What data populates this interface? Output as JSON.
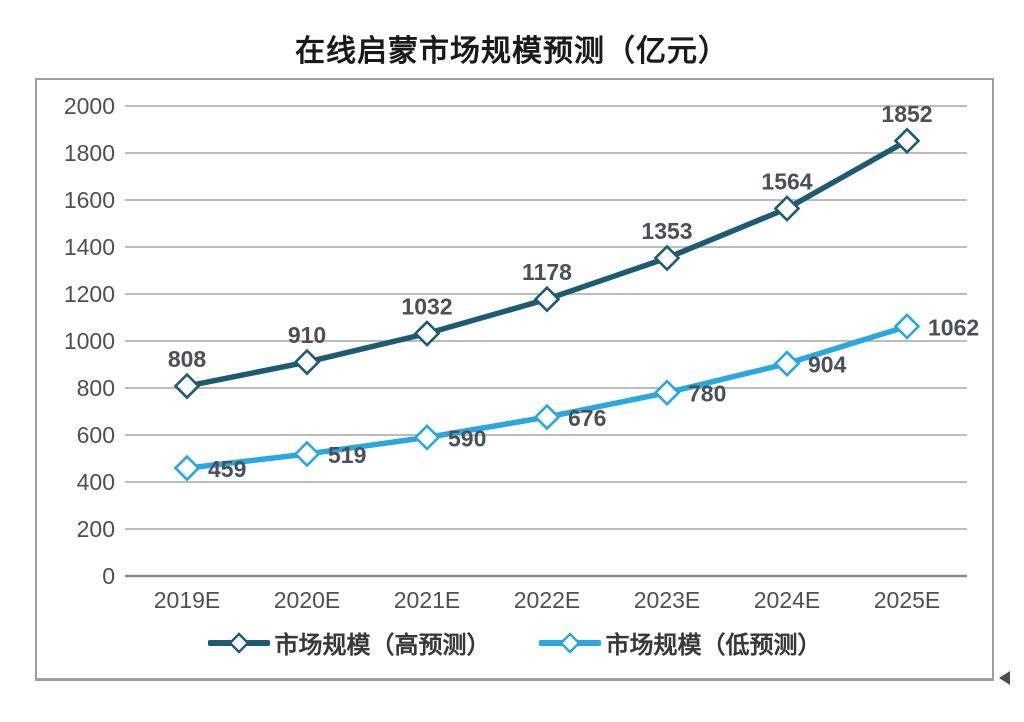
{
  "chart_data": {
    "type": "line",
    "title": "在线启蒙市场规模预测（亿元）",
    "categories": [
      "2019E",
      "2020E",
      "2021E",
      "2022E",
      "2023E",
      "2024E",
      "2025E"
    ],
    "series": [
      {
        "id": "high",
        "name": "市场规模（高预测）",
        "values": [
          808,
          910,
          1032,
          1178,
          1353,
          1564,
          1852
        ],
        "color": "#1d5b73",
        "label_position": "above"
      },
      {
        "id": "low",
        "name": "市场规模（低预测）",
        "values": [
          459,
          519,
          590,
          676,
          780,
          904,
          1062
        ],
        "color": "#2aa7de",
        "label_position": "right"
      }
    ],
    "ylim": [
      0,
      2000
    ],
    "ytick_step": 200,
    "ytick_labels": [
      "0",
      "200",
      "400",
      "600",
      "800",
      "1000",
      "1200",
      "1400",
      "1600",
      "1800",
      "2000"
    ],
    "grid": "horizontal",
    "marker": "hollow-diamond",
    "data_labels_shown": true,
    "legend_position": "bottom-inside"
  },
  "style": {
    "grid_color": "#a6a6a6",
    "baseline_color": "#8a8a8a",
    "tick_label_color": "#4f4f52",
    "data_label_color": "#4a5058",
    "border_color": "#9e9e9e",
    "title_color": "#1a1a1a",
    "marker_fill": "#ffffff"
  }
}
